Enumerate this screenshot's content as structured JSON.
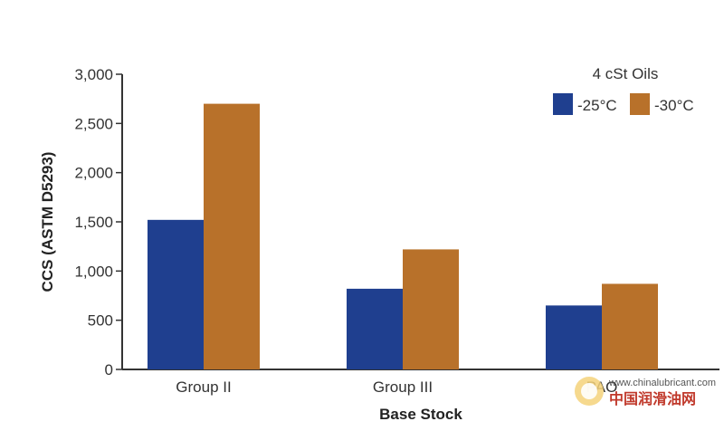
{
  "chart_data": {
    "type": "bar",
    "categories": [
      "Group II",
      "Group III",
      "PAO"
    ],
    "series": [
      {
        "name": "-25°C",
        "color": "#1f3f8f",
        "values": [
          1520,
          820,
          650
        ]
      },
      {
        "name": "-30°C",
        "color": "#b8712a",
        "values": [
          2700,
          1220,
          870
        ]
      }
    ],
    "title": "",
    "xlabel": "Base Stock",
    "ylabel": "CCS (ASTM D5293)",
    "ylim": [
      0,
      3000
    ],
    "yticks": [
      0,
      500,
      1000,
      1500,
      2000,
      2500,
      3000
    ],
    "ytick_labels": [
      "0",
      "500",
      "1,000",
      "1,500",
      "2,000",
      "2,500",
      "3,000"
    ],
    "legend": {
      "title": "4 cSt Oils",
      "placement": "top-right"
    },
    "grid": false
  },
  "watermark": {
    "url": "www.chinalubricant.com",
    "text": "中国润滑油网"
  }
}
